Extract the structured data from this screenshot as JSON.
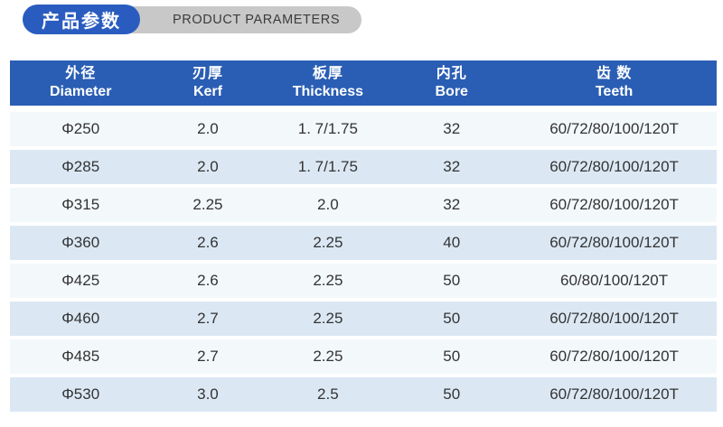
{
  "page": {
    "background": "#ffffff"
  },
  "title_badge": {
    "zh": "产品参数",
    "en": "PRODUCT PARAMETERS",
    "pill_blue_color": "#2a5cc0",
    "pill_gray_color": "#c8c8c8"
  },
  "table": {
    "header_bg": "#2a5eb4",
    "row_bg_odd": "#f3f8fb",
    "row_bg_even": "#dbe8f4",
    "columns": [
      {
        "zh": "外径",
        "en": "Diameter"
      },
      {
        "zh": "刃厚",
        "en": "Kerf"
      },
      {
        "zh": "板厚",
        "en": "Thickness"
      },
      {
        "zh": "内孔",
        "en": "Bore"
      },
      {
        "zh": "齿 数",
        "en": "Teeth"
      }
    ],
    "rows": [
      [
        "Φ250",
        "2.0",
        "1. 7/1.75",
        "32",
        "60/72/80/100/120T"
      ],
      [
        "Φ285",
        "2.0",
        "1. 7/1.75",
        "32",
        "60/72/80/100/120T"
      ],
      [
        "Φ315",
        "2.25",
        "2.0",
        "32",
        "60/72/80/100/120T"
      ],
      [
        "Φ360",
        "2.6",
        "2.25",
        "40",
        "60/72/80/100/120T"
      ],
      [
        "Φ425",
        "2.6",
        "2.25",
        "50",
        "60/80/100/120T"
      ],
      [
        "Φ460",
        "2.7",
        "2.25",
        "50",
        "60/72/80/100/120T"
      ],
      [
        "Φ485",
        "2.7",
        "2.25",
        "50",
        "60/72/80/100/120T"
      ],
      [
        "Φ530",
        "3.0",
        "2.5",
        "50",
        "60/72/80/100/120T"
      ]
    ]
  }
}
